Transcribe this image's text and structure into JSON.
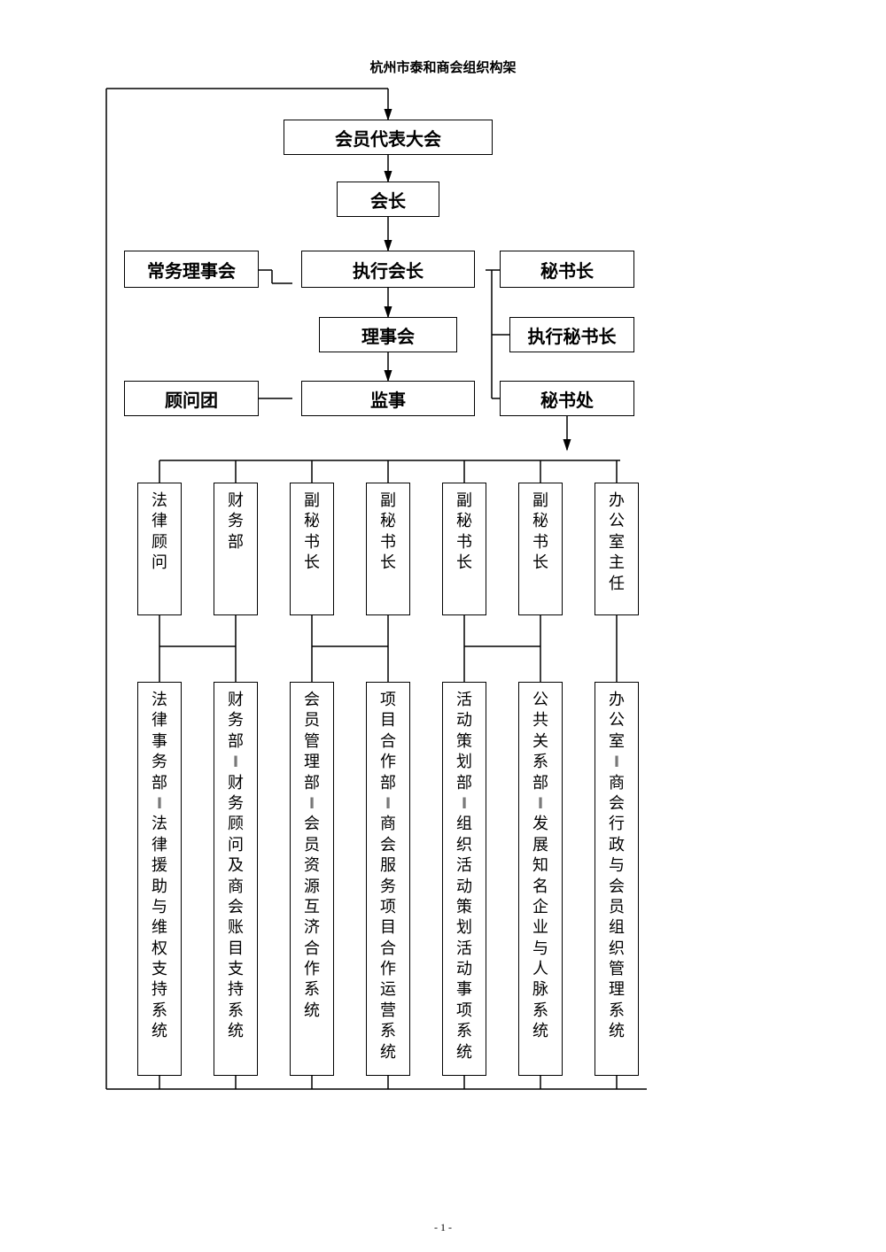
{
  "title": "杭州市泰和商会组织构架",
  "footer": "- 1 -",
  "colors": {
    "line": "#000000",
    "bg": "#ffffff"
  },
  "boxes": {
    "top1": "会员代表大会",
    "top2": "会长",
    "row3_left": "常务理事会",
    "row3_mid": "执行会长",
    "row3_right": "秘书长",
    "row4_mid": "理事会",
    "row4_right": "执行秘书长",
    "row5_left": "顾问团",
    "row5_mid": "监事",
    "row5_right": "秘书处"
  },
  "mid_row": [
    "法律顾问",
    "财务部",
    "副秘书长",
    "副秘书长",
    "副秘书长",
    "副秘书长",
    "办公室主任"
  ],
  "bottom_row": [
    "法律事务部‖法律援助与维权支持系统",
    "财务部‖财务顾问及商会账目支持系统",
    "会员管理部‖会员资源互济合作系统",
    "项目合作部‖商会服务项目合作运营系统",
    "活动策划部‖组织活动策划活动事项系统",
    "公共关系部‖发展知名企业与人脉系统",
    "办公室‖商会行政与会员组织管理系统"
  ]
}
